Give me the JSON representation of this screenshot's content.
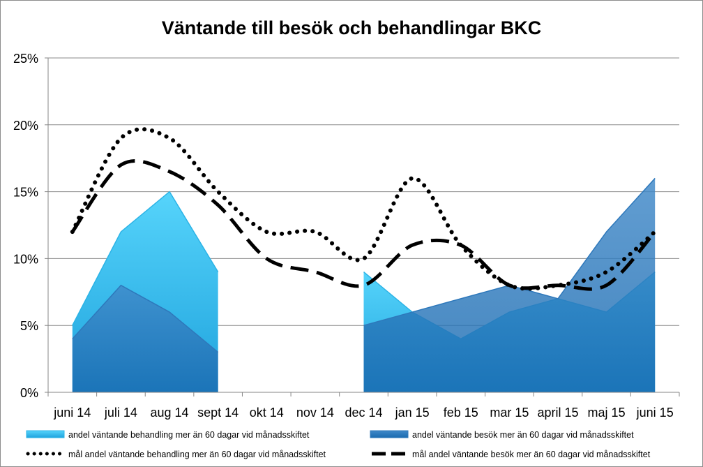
{
  "chart_data": {
    "type": "area",
    "title": "Väntande till besök och behandlingar BKC",
    "xlabel": "",
    "ylabel": "",
    "categories": [
      "juni 14",
      "juli 14",
      "aug 14",
      "sept 14",
      "okt 14",
      "nov 14",
      "dec 14",
      "jan 15",
      "feb 15",
      "mar 15",
      "april 15",
      "maj 15",
      "juni 15"
    ],
    "ylim": [
      0,
      25
    ],
    "y_ticks": [
      "0%",
      "5%",
      "10%",
      "15%",
      "20%",
      "25%"
    ],
    "grid": true,
    "legend_position": "bottom",
    "series": [
      {
        "name": "andel väntande behandling mer än 60 dagar vid månadsskiftet",
        "kind": "area",
        "color": "#3fc3f0",
        "values": [
          5,
          12,
          15,
          9,
          null,
          null,
          9,
          6,
          4,
          6,
          7,
          6,
          9
        ]
      },
      {
        "name": "andel väntande besök mer än 60 dagar vid månadsskiftet",
        "kind": "area",
        "color": "#3b85c6",
        "values": [
          4,
          8,
          6,
          3,
          null,
          null,
          5,
          6,
          7,
          8,
          7,
          12,
          16
        ]
      },
      {
        "name": "mål andel väntande behandling mer än 60 dagar vid månadsskiftet",
        "kind": "line",
        "style": "dotted",
        "color": "#000000",
        "values": [
          12,
          19,
          19,
          15,
          12,
          12,
          10,
          16,
          11,
          8,
          8,
          9,
          12
        ]
      },
      {
        "name": "mål andel  väntande besök mer än 60 dagar vid månadsskiftet",
        "kind": "line",
        "style": "dashed",
        "color": "#000000",
        "values": [
          12,
          17,
          16.5,
          14,
          10,
          9,
          8,
          11,
          11,
          8,
          8,
          8,
          12
        ]
      }
    ]
  }
}
